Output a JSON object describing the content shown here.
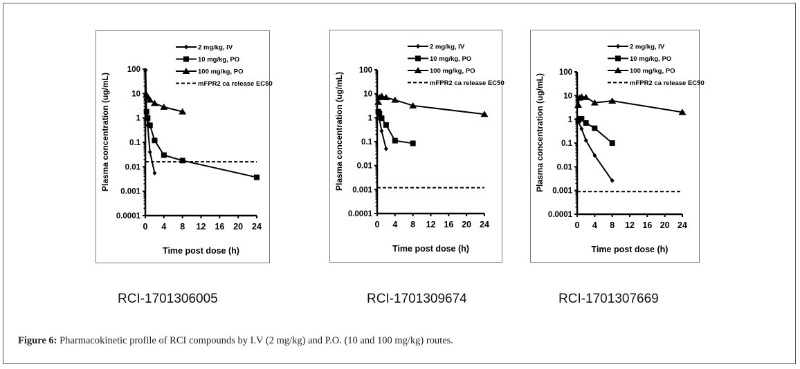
{
  "caption": {
    "label": "Figure 6:",
    "text": " Pharmacokinetic profile of RCI compounds by I.V (2 mg/kg) and P.O. (10 and 100 mg/kg) routes."
  },
  "compounds": [
    "RCI-1701306005",
    "RCI-1701309674",
    "RCI-1701307669"
  ],
  "chart_data": [
    {
      "type": "line",
      "title": "",
      "xlabel": "Time post dose (h)",
      "ylabel": "Plasma concentration  (ug/mL)",
      "yscale": "log",
      "xlim": [
        0,
        24
      ],
      "ylim": [
        0.0001,
        100
      ],
      "xticks": [
        "0",
        "4",
        "8",
        "12",
        "16",
        "20",
        "24"
      ],
      "yticks": [
        "0.0001",
        "0.001",
        "0.01",
        "0.1",
        "1",
        "10",
        "100"
      ],
      "grid": false,
      "legend": "top-right",
      "series": [
        {
          "name": "2 mg/kg, IV",
          "marker": "diamond",
          "x": [
            0.083,
            0.25,
            0.5,
            1,
            2
          ],
          "y": [
            90,
            1.5,
            0.5,
            0.04,
            0.0055
          ]
        },
        {
          "name": "10 mg/kg, PO",
          "marker": "square",
          "x": [
            0.25,
            0.5,
            1,
            2,
            4,
            8,
            24
          ],
          "y": [
            1.8,
            1.0,
            0.5,
            0.12,
            0.03,
            0.018,
            0.0037
          ]
        },
        {
          "name": "100 mg/kg, PO",
          "marker": "triangle",
          "x": [
            0.25,
            0.5,
            1,
            2,
            4,
            8
          ],
          "y": [
            9,
            7,
            5.5,
            4,
            2.8,
            1.8
          ]
        },
        {
          "name": "mFPR2 ca release EC50",
          "marker": "dashed",
          "x": [
            0,
            24
          ],
          "y": [
            0.016,
            0.016
          ]
        }
      ]
    },
    {
      "type": "line",
      "title": "",
      "xlabel": "Time post dose (h)",
      "ylabel": "Plasma concentration  (ug/mL)",
      "yscale": "log",
      "xlim": [
        0,
        24
      ],
      "ylim": [
        0.0001,
        100
      ],
      "xticks": [
        "0",
        "4",
        "8",
        "12",
        "16",
        "20",
        "24"
      ],
      "yticks": [
        "0.0001",
        "0.001",
        "0.01",
        "0.1",
        "1",
        "10",
        "100"
      ],
      "grid": false,
      "legend": "top-right",
      "series": [
        {
          "name": "2 mg/kg, IV",
          "marker": "diamond",
          "x": [
            0.083,
            0.25,
            0.5,
            1,
            2
          ],
          "y": [
            1.8,
            1.5,
            0.9,
            0.28,
            0.05
          ]
        },
        {
          "name": "10 mg/kg, PO",
          "marker": "square",
          "x": [
            0.25,
            0.5,
            1,
            2,
            4,
            8
          ],
          "y": [
            1.8,
            1.5,
            0.95,
            0.5,
            0.11,
            0.085
          ]
        },
        {
          "name": "100 mg/kg, PO",
          "marker": "triangle",
          "x": [
            0.25,
            0.5,
            1,
            2,
            4,
            8,
            24
          ],
          "y": [
            4.5,
            7,
            8,
            7,
            5.5,
            3.2,
            1.4
          ]
        },
        {
          "name": "mFPR2 ca release EC50",
          "marker": "dashed",
          "x": [
            0,
            24
          ],
          "y": [
            0.0012,
            0.0012
          ]
        }
      ]
    },
    {
      "type": "line",
      "title": "",
      "xlabel": "Time post dose (h)",
      "ylabel": "Plasma concentration  (ug/mL)",
      "yscale": "log",
      "xlim": [
        0,
        24
      ],
      "ylim": [
        0.0001,
        100
      ],
      "xticks": [
        "0",
        "4",
        "8",
        "12",
        "16",
        "20",
        "24"
      ],
      "yticks": [
        "0.0001",
        "0.001",
        "0.01",
        "0.1",
        "1",
        "10",
        "100"
      ],
      "grid": false,
      "legend": "top-right",
      "series": [
        {
          "name": "2 mg/kg, IV",
          "marker": "diamond",
          "x": [
            0.083,
            0.25,
            1,
            2,
            4,
            8
          ],
          "y": [
            0.9,
            0.8,
            0.4,
            0.13,
            0.03,
            0.0026
          ]
        },
        {
          "name": "10 mg/kg, PO",
          "marker": "square",
          "x": [
            0.25,
            0.5,
            1,
            2,
            4,
            8
          ],
          "y": [
            0.9,
            1.05,
            1.05,
            0.7,
            0.42,
            0.1
          ]
        },
        {
          "name": "100 mg/kg, PO",
          "marker": "triangle",
          "x": [
            0.25,
            0.5,
            1,
            2,
            4,
            8,
            24
          ],
          "y": [
            4,
            8,
            9,
            8.5,
            5,
            6,
            2
          ]
        },
        {
          "name": "mFPR2 ca release EC50",
          "marker": "dashed",
          "x": [
            0,
            24
          ],
          "y": [
            0.0009,
            0.0009
          ]
        }
      ]
    }
  ]
}
